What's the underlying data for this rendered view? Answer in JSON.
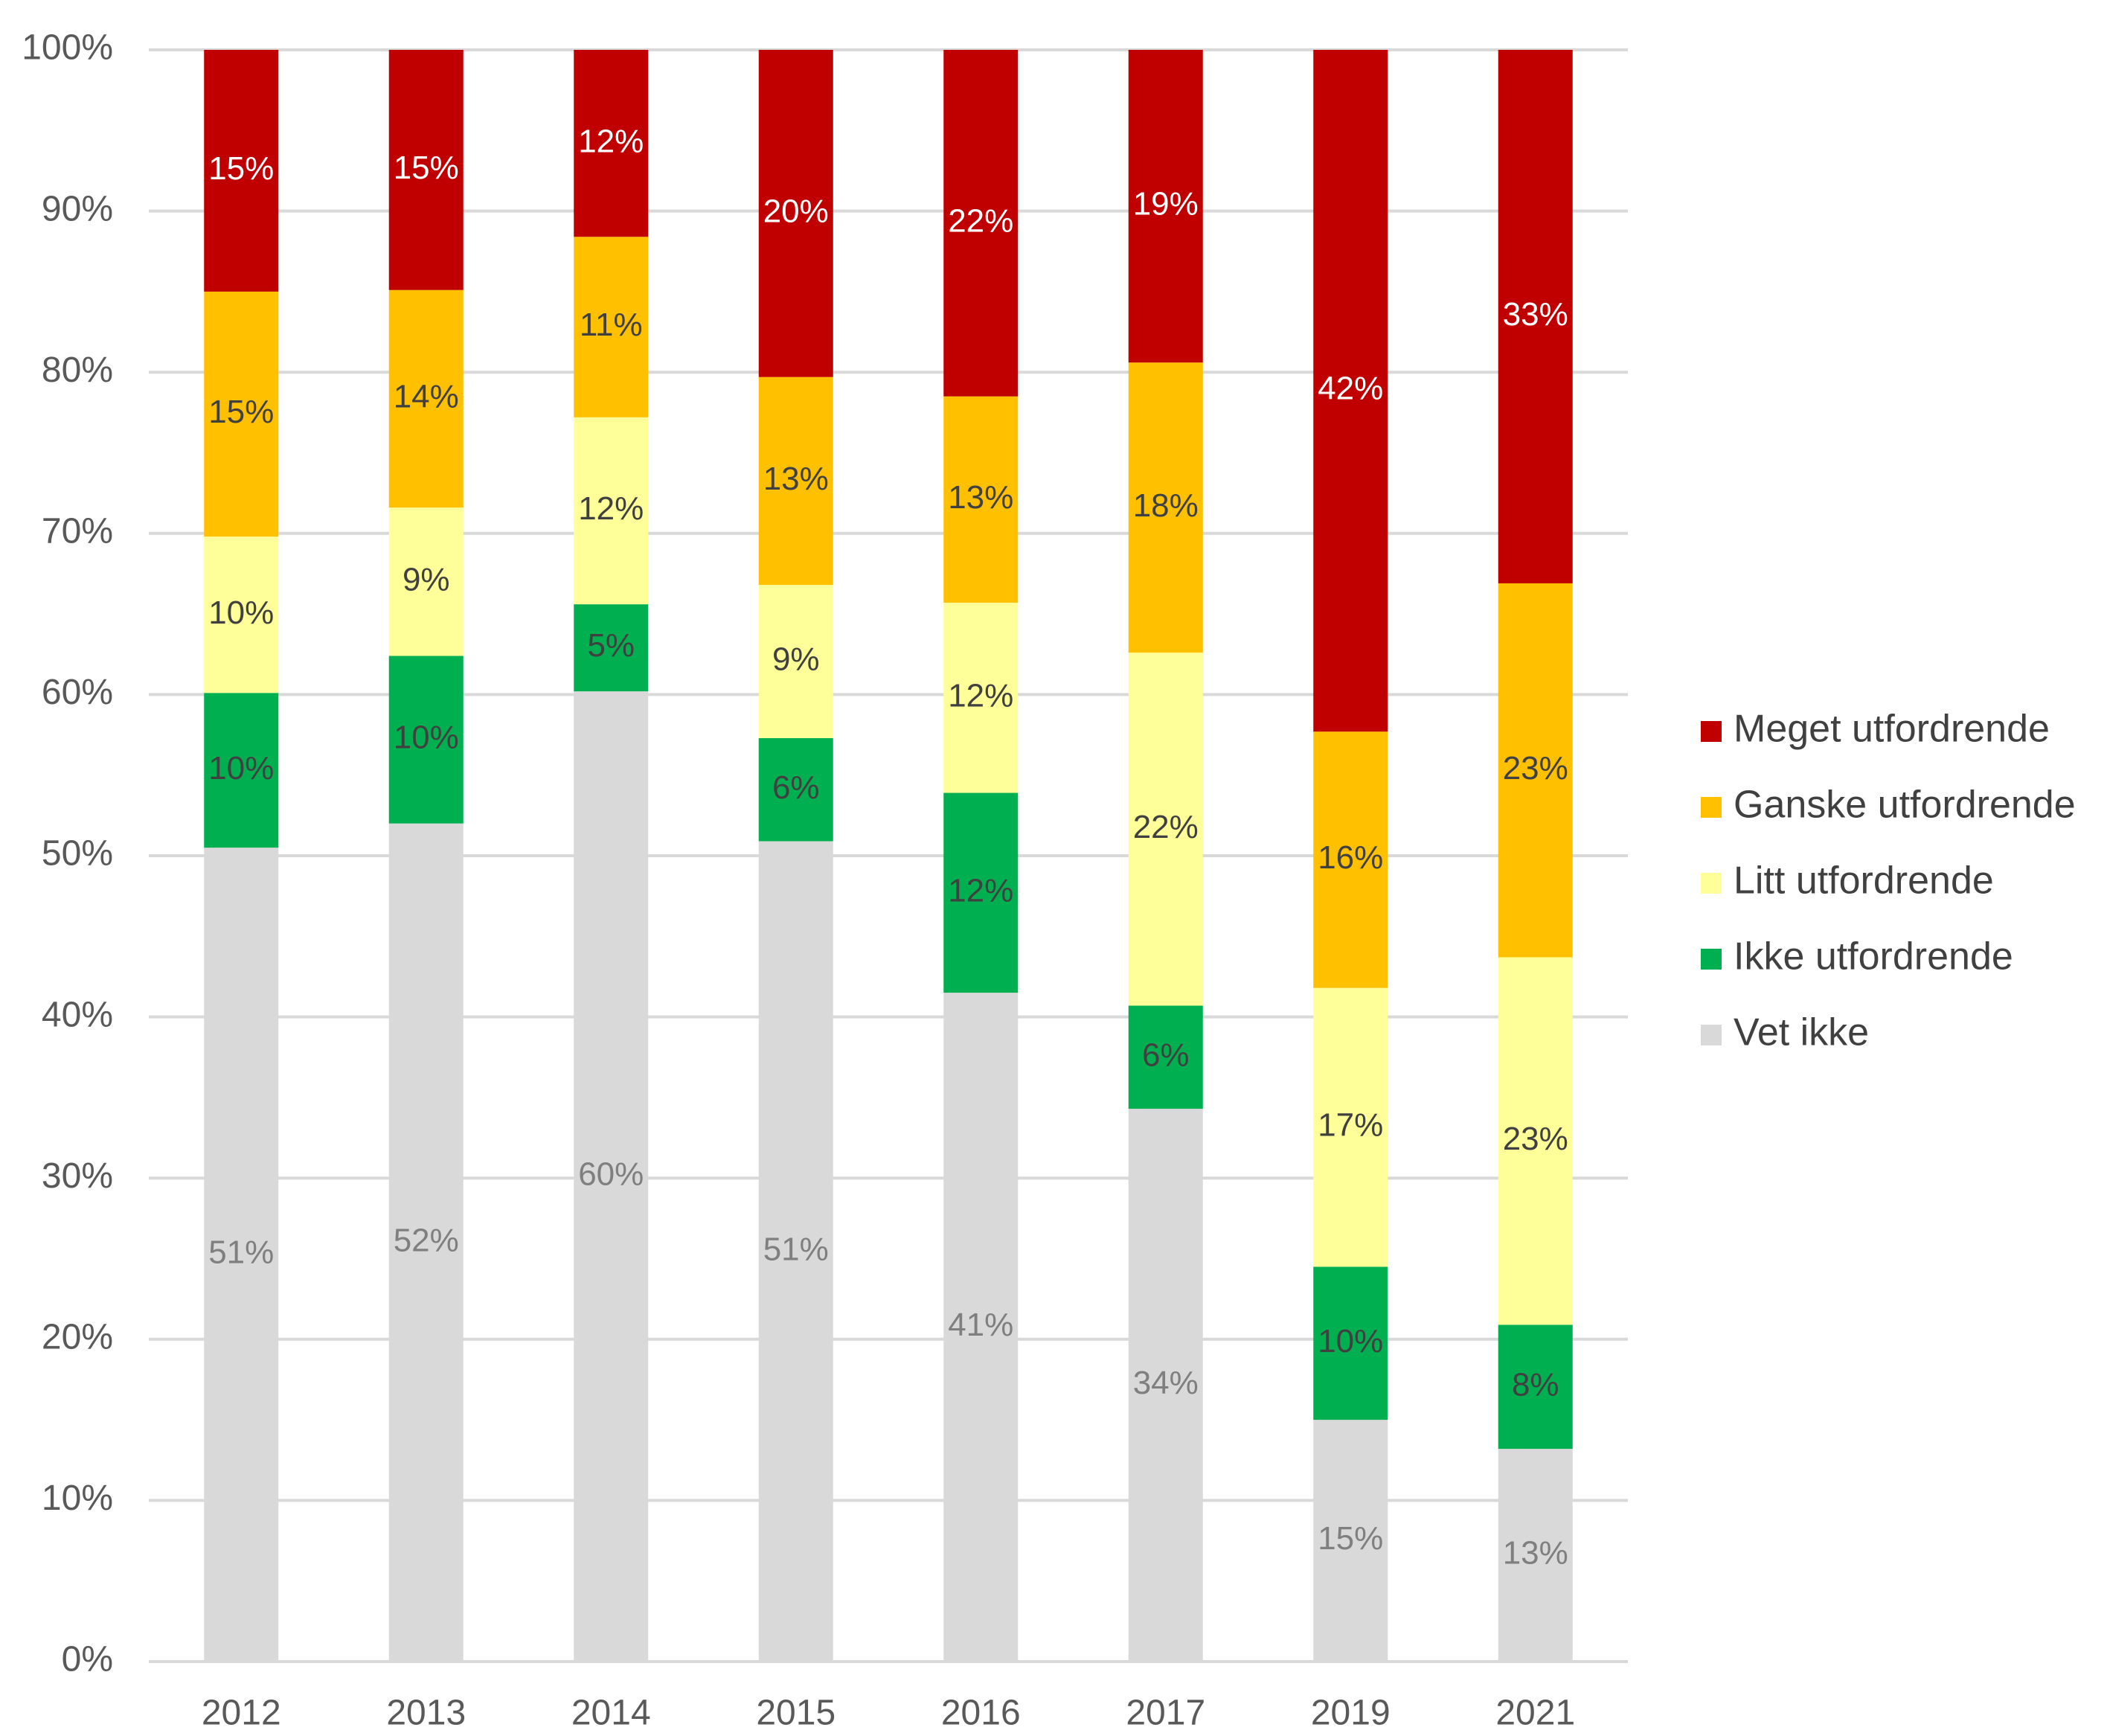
{
  "chart_data": {
    "type": "bar",
    "stacked": true,
    "percent_stacked": true,
    "categories": [
      "2012",
      "2013",
      "2014",
      "2015",
      "2016",
      "2017",
      "2019",
      "2021"
    ],
    "series": [
      {
        "name": "Vet ikke",
        "color": "#d9d9d9",
        "label_color": "#7f7f7f",
        "values": [
          50.5,
          52,
          60.2,
          50.9,
          41.5,
          34.3,
          15,
          13.2
        ],
        "labels": [
          "51%",
          "52%",
          "60%",
          "51%",
          "41%",
          "34%",
          "15%",
          "13%"
        ]
      },
      {
        "name": "Ikke utfordrende",
        "color": "#00b050",
        "label_color": "#404040",
        "values": [
          9.6,
          10.4,
          5.4,
          6.4,
          12.4,
          6.4,
          9.5,
          7.7
        ],
        "labels": [
          "10%",
          "10%",
          "5%",
          "6%",
          "12%",
          "6%",
          "10%",
          "8%"
        ]
      },
      {
        "name": "Litt utfordrende",
        "color": "#ffff99",
        "label_color": "#404040",
        "values": [
          9.7,
          9.2,
          11.6,
          9.5,
          11.8,
          21.9,
          17.3,
          22.8
        ],
        "labels": [
          "10%",
          "9%",
          "12%",
          "9%",
          "12%",
          "22%",
          "17%",
          "23%"
        ]
      },
      {
        "name": "Ganske utfordrende",
        "color": "#ffc000",
        "label_color": "#404040",
        "values": [
          15.2,
          13.5,
          11.2,
          12.9,
          12.8,
          18,
          15.9,
          23.2
        ],
        "labels": [
          "15%",
          "14%",
          "11%",
          "13%",
          "13%",
          "18%",
          "16%",
          "23%"
        ]
      },
      {
        "name": "Meget utfordrende",
        "color": "#c00000",
        "label_color": "#ffffff",
        "values": [
          15,
          14.9,
          11.6,
          20.3,
          21.5,
          19.4,
          42.3,
          33.1
        ],
        "labels": [
          "15%",
          "15%",
          "12%",
          "20%",
          "22%",
          "19%",
          "42%",
          "33%"
        ]
      }
    ],
    "y_ticks": [
      "0%",
      "10%",
      "20%",
      "30%",
      "40%",
      "50%",
      "60%",
      "70%",
      "80%",
      "90%",
      "100%"
    ],
    "ylim": [
      0,
      100
    ],
    "grid": true,
    "legend": {
      "placement": "right",
      "order": [
        "Meget utfordrende",
        "Ganske utfordrende",
        "Litt utfordrende",
        "Ikke utfordrende",
        "Vet ikke"
      ]
    }
  }
}
